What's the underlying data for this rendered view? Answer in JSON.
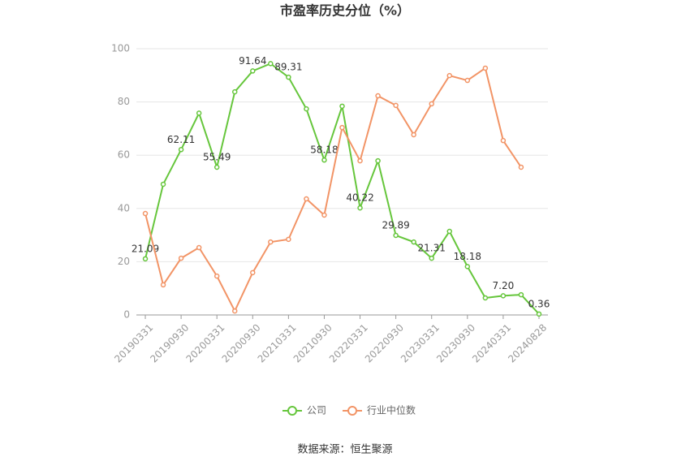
{
  "chart_data": {
    "type": "line",
    "title": "市盈率历史分位（%）",
    "categories": [
      "20190331",
      null,
      "20190930",
      null,
      "20200331",
      null,
      "20200930",
      null,
      "20210331",
      null,
      "20210930",
      null,
      "20220331",
      null,
      "20220930",
      null,
      "20230331",
      null,
      "20230930",
      null,
      "20240331",
      null,
      "20240828"
    ],
    "series": [
      {
        "name": "公司",
        "color": "#66c63c",
        "values": [
          21.09,
          49.1,
          62.11,
          75.8,
          55.49,
          83.8,
          91.64,
          94.4,
          89.31,
          77.4,
          58.18,
          78.4,
          40.22,
          57.9,
          29.89,
          27.4,
          21.31,
          31.4,
          18.18,
          6.4,
          7.2,
          7.6,
          0.36
        ],
        "value_labels": [
          "21.09",
          null,
          "62.11",
          null,
          "55.49",
          null,
          "91.64",
          null,
          "89.31",
          null,
          "58.18",
          null,
          "40.22",
          null,
          "29.89",
          null,
          "21.31",
          null,
          "18.18",
          null,
          "7.20",
          null,
          "0.36"
        ]
      },
      {
        "name": "行业中位数",
        "color": "#f29466",
        "values": [
          38.1,
          11.3,
          21.3,
          25.3,
          14.6,
          1.5,
          15.9,
          27.4,
          28.4,
          43.6,
          37.5,
          70.4,
          57.9,
          82.3,
          78.7,
          67.7,
          79.3,
          89.9,
          88.1,
          92.7,
          65.5,
          55.5,
          null
        ]
      }
    ],
    "ylim": [
      0,
      100
    ],
    "yticks": [
      0,
      20,
      40,
      60,
      80,
      100
    ],
    "grid": true,
    "source": "数据来源：恒生聚源"
  }
}
